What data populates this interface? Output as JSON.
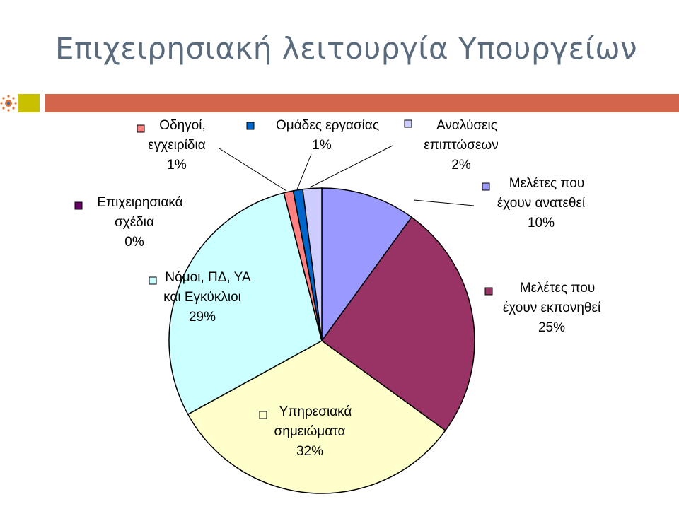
{
  "slide": {
    "title": "Επιχειρησιακή λειτουργία Υπουργείων"
  },
  "colors": {
    "title": "#5a6b7d",
    "bar_orange": "#d2654a",
    "bar_olive": "#c9c000",
    "bar_white_gap": "#ffffff",
    "logo_dots": "#e07030"
  },
  "chart_data": {
    "type": "pie",
    "title": "",
    "start_angle_deg": 0,
    "direction": "clockwise",
    "slices": [
      {
        "label_lines": [
          "Μελέτες που",
          "έχουν ανατεθεί"
        ],
        "value": 10,
        "pct_label": "10%",
        "color": "#9999ff"
      },
      {
        "label_lines": [
          "Μελέτες που",
          "έχουν εκπονηθεί"
        ],
        "value": 25,
        "pct_label": "25%",
        "color": "#993366"
      },
      {
        "label_lines": [
          "Υπηρεσιακά",
          "σημειώματα"
        ],
        "value": 32,
        "pct_label": "32%",
        "color": "#ffffcc"
      },
      {
        "label_lines": [
          "Νόμοι, ΠΔ, ΥΑ",
          "και Εγκύκλιοι"
        ],
        "value": 29,
        "pct_label": "29%",
        "color": "#ccffff"
      },
      {
        "label_lines": [
          "Επιχειρησιακά",
          "σχέδια"
        ],
        "value": 0,
        "pct_label": "0%",
        "color": "#660066"
      },
      {
        "label_lines": [
          "Οδηγοί,",
          "εγχειρίδια"
        ],
        "value": 1,
        "pct_label": "1%",
        "color": "#ff8080"
      },
      {
        "label_lines": [
          "Ομάδες εργασίας"
        ],
        "value": 1,
        "pct_label": "1%",
        "color": "#0066cc"
      },
      {
        "label_lines": [
          "Αναλύσεις",
          "επιπτώσεων"
        ],
        "value": 2,
        "pct_label": "2%",
        "color": "#ccccff"
      }
    ],
    "legend": "none",
    "data_labels": "outside-with-leaders"
  }
}
